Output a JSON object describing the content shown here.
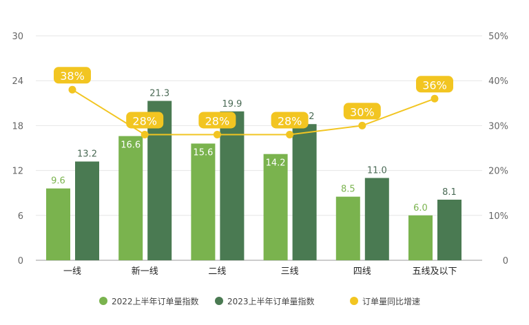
{
  "chart_data": {
    "type": "bar",
    "categories": [
      "一线",
      "新一线",
      "二线",
      "三线",
      "四线",
      "五线及以下"
    ],
    "series": [
      {
        "name": "2022上半年订单量指数",
        "type": "bar",
        "axis": "left",
        "color": "#7ab34e",
        "values": [
          9.6,
          16.6,
          15.6,
          14.2,
          8.5,
          6.0
        ]
      },
      {
        "name": "2023上半年订单量指数",
        "type": "bar",
        "axis": "left",
        "color": "#4a7a52",
        "values": [
          13.2,
          21.3,
          19.9,
          18.2,
          11.0,
          8.1
        ]
      },
      {
        "name": "订单量同比增速",
        "type": "line",
        "axis": "right",
        "color": "#f2c521",
        "values": [
          38,
          28,
          28,
          28,
          30,
          36
        ],
        "labels": [
          "38%",
          "28%",
          "28%",
          "28%",
          "30%",
          "36%"
        ]
      }
    ],
    "y_left": {
      "range": [
        0,
        30
      ],
      "ticks": [
        "0",
        "6",
        "12",
        "18",
        "24",
        "30"
      ]
    },
    "y_right": {
      "range": [
        0,
        50
      ],
      "ticks": [
        "0",
        "10%",
        "20%",
        "30%",
        "40%",
        "50%"
      ]
    },
    "grid": true,
    "legend": "bottom"
  }
}
